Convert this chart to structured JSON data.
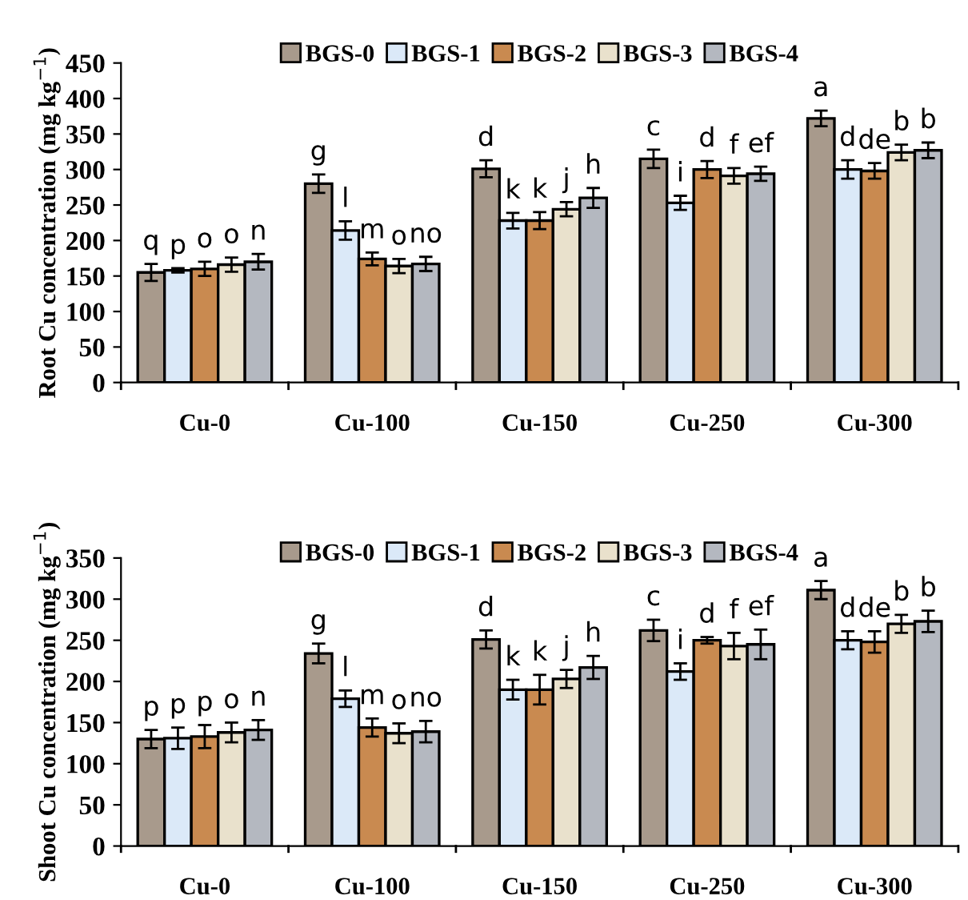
{
  "chart_data": [
    {
      "type": "bar",
      "ylabel": "Root Cu concentration (mg kg$^{−1}$)",
      "categories": [
        "Cu-0",
        "Cu-100",
        "Cu-150",
        "Cu-250",
        "Cu-300"
      ],
      "ylim": [
        0,
        450
      ],
      "yticks": [
        0,
        50,
        100,
        150,
        200,
        250,
        300,
        350,
        400,
        450
      ],
      "grid": false,
      "legend": "top",
      "series": [
        {
          "name": "BGS-0",
          "color": "#a89a8c",
          "values": [
            155,
            280,
            301,
            315,
            372
          ],
          "errors": [
            12,
            13,
            12,
            13,
            11
          ]
        },
        {
          "name": "BGS-1",
          "color": "#dbe9f8",
          "values": [
            158,
            214,
            228,
            253,
            300
          ],
          "errors": [
            3,
            13,
            11,
            10,
            13
          ]
        },
        {
          "name": "BGS-2",
          "color": "#c98a50",
          "values": [
            160,
            174,
            228,
            300,
            298
          ],
          "errors": [
            10,
            9,
            12,
            12,
            11
          ]
        },
        {
          "name": "BGS-3",
          "color": "#e9e1cc",
          "values": [
            166,
            164,
            244,
            291,
            324
          ],
          "errors": [
            10,
            10,
            10,
            11,
            11
          ]
        },
        {
          "name": "BGS-4",
          "color": "#b4b8c0",
          "values": [
            170,
            167,
            260,
            294,
            327
          ],
          "errors": [
            11,
            10,
            14,
            10,
            11
          ]
        }
      ],
      "annotations": [
        "q",
        "p",
        "o",
        "o",
        "n",
        "g",
        "l",
        "m",
        "o",
        "no",
        "d",
        "k",
        "k",
        "j",
        "h",
        "c",
        "i",
        "d",
        "f",
        "ef",
        "a",
        "d",
        "de",
        "b",
        "b"
      ]
    },
    {
      "type": "bar",
      "ylabel": "Shoot Cu concentration (mg kg$^{−1}$)",
      "categories": [
        "Cu-0",
        "Cu-100",
        "Cu-150",
        "Cu-250",
        "Cu-300"
      ],
      "ylim": [
        0,
        350
      ],
      "yticks": [
        0,
        50,
        100,
        150,
        200,
        250,
        300,
        350
      ],
      "grid": false,
      "legend": "top",
      "series": [
        {
          "name": "BGS-0",
          "color": "#a89a8c",
          "values": [
            130,
            234,
            251,
            262,
            311
          ],
          "errors": [
            11,
            12,
            11,
            13,
            11
          ]
        },
        {
          "name": "BGS-1",
          "color": "#dbe9f8",
          "values": [
            131,
            179,
            190,
            212,
            250
          ],
          "errors": [
            13,
            10,
            12,
            10,
            11
          ]
        },
        {
          "name": "BGS-2",
          "color": "#c98a50",
          "values": [
            133,
            144,
            190,
            250,
            248
          ],
          "errors": [
            14,
            11,
            18,
            4,
            13
          ]
        },
        {
          "name": "BGS-3",
          "color": "#e9e1cc",
          "values": [
            138,
            137,
            203,
            243,
            270
          ],
          "errors": [
            12,
            12,
            11,
            16,
            11
          ]
        },
        {
          "name": "BGS-4",
          "color": "#b4b8c0",
          "values": [
            141,
            139,
            217,
            245,
            273
          ],
          "errors": [
            12,
            13,
            14,
            18,
            13
          ]
        }
      ],
      "annotations": [
        "p",
        "p",
        "p",
        "o",
        "n",
        "g",
        "l",
        "m",
        "o",
        "no",
        "d",
        "k",
        "k",
        "j",
        "h",
        "c",
        "i",
        "d",
        "f",
        "ef",
        "a",
        "d",
        "de",
        "b",
        "b"
      ]
    }
  ]
}
